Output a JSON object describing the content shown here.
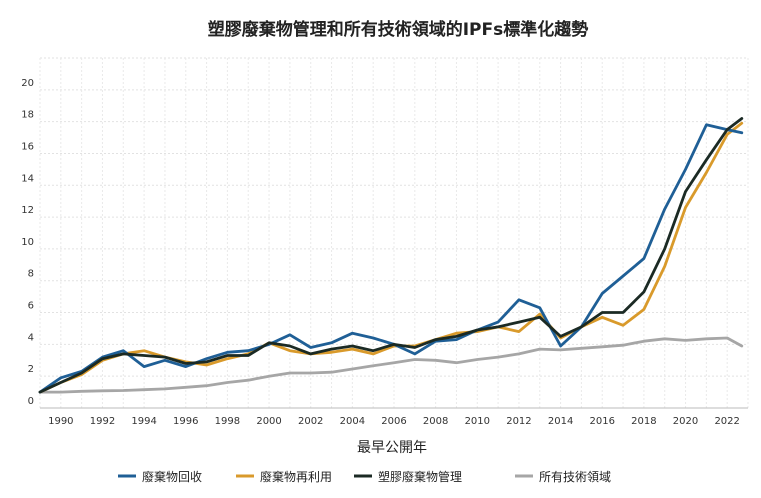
{
  "chart_data": {
    "type": "line",
    "title": "塑膠廢棄物管理和所有技術領域的IPFs標準化趨勢",
    "xlabel": "最早公開年",
    "ylabel": "",
    "xlim": [
      1989,
      2023
    ],
    "ylim": [
      0,
      22
    ],
    "yticks": [
      0,
      2,
      4,
      6,
      8,
      10,
      12,
      14,
      16,
      18,
      20
    ],
    "xticks": [
      1990,
      1992,
      1994,
      1996,
      1998,
      2000,
      2002,
      2004,
      2006,
      2008,
      2010,
      2012,
      2014,
      2016,
      2018,
      2020,
      2022
    ],
    "grid": true,
    "legend_position": "bottom",
    "x": [
      1989,
      1990,
      1991,
      1992,
      1993,
      1994,
      1995,
      1996,
      1997,
      1998,
      1999,
      2000,
      2001,
      2002,
      2003,
      2004,
      2005,
      2006,
      2007,
      2008,
      2009,
      2010,
      2011,
      2012,
      2013,
      2014,
      2015,
      2016,
      2017,
      2018,
      2019,
      2020,
      2021,
      2022,
      2022.7
    ],
    "series": [
      {
        "name": "廢棄物回收",
        "color": "#1f5f96",
        "values": [
          1.0,
          1.9,
          2.3,
          3.2,
          3.6,
          2.6,
          3.0,
          2.6,
          3.1,
          3.5,
          3.6,
          4.0,
          4.6,
          3.8,
          4.1,
          4.7,
          4.4,
          4.0,
          3.4,
          4.2,
          4.3,
          4.9,
          5.4,
          6.8,
          6.3,
          3.9,
          5.1,
          7.2,
          8.3,
          9.4,
          12.5,
          15.0,
          17.8,
          17.5,
          17.3
        ]
      },
      {
        "name": "廢棄物再利用",
        "color": "#d99a2b",
        "values": [
          1.0,
          1.6,
          2.1,
          3.0,
          3.4,
          3.6,
          3.2,
          2.9,
          2.7,
          3.1,
          3.4,
          4.1,
          3.6,
          3.4,
          3.5,
          3.7,
          3.4,
          3.9,
          3.9,
          4.3,
          4.7,
          4.8,
          5.1,
          4.8,
          5.9,
          4.4,
          5.1,
          5.7,
          5.2,
          6.2,
          8.9,
          12.6,
          14.8,
          17.2,
          17.9
        ]
      },
      {
        "name": "塑膠廢棄物管理",
        "color": "#1b2a24",
        "values": [
          1.0,
          1.6,
          2.2,
          3.1,
          3.4,
          3.3,
          3.2,
          2.8,
          2.9,
          3.3,
          3.3,
          4.1,
          3.9,
          3.4,
          3.7,
          3.9,
          3.6,
          4.0,
          3.8,
          4.3,
          4.5,
          4.9,
          5.1,
          5.4,
          5.7,
          4.5,
          5.1,
          6.0,
          6.0,
          7.3,
          10.0,
          13.6,
          15.6,
          17.5,
          18.2
        ]
      },
      {
        "name": "所有技術領域",
        "color": "#a6a6a6",
        "values": [
          1.0,
          1.0,
          1.05,
          1.08,
          1.1,
          1.15,
          1.2,
          1.3,
          1.4,
          1.6,
          1.75,
          2.0,
          2.2,
          2.2,
          2.25,
          2.45,
          2.65,
          2.85,
          3.05,
          3.0,
          2.85,
          3.05,
          3.2,
          3.4,
          3.7,
          3.65,
          3.75,
          3.85,
          3.95,
          4.2,
          4.35,
          4.25,
          4.35,
          4.4,
          3.9
        ]
      }
    ]
  }
}
